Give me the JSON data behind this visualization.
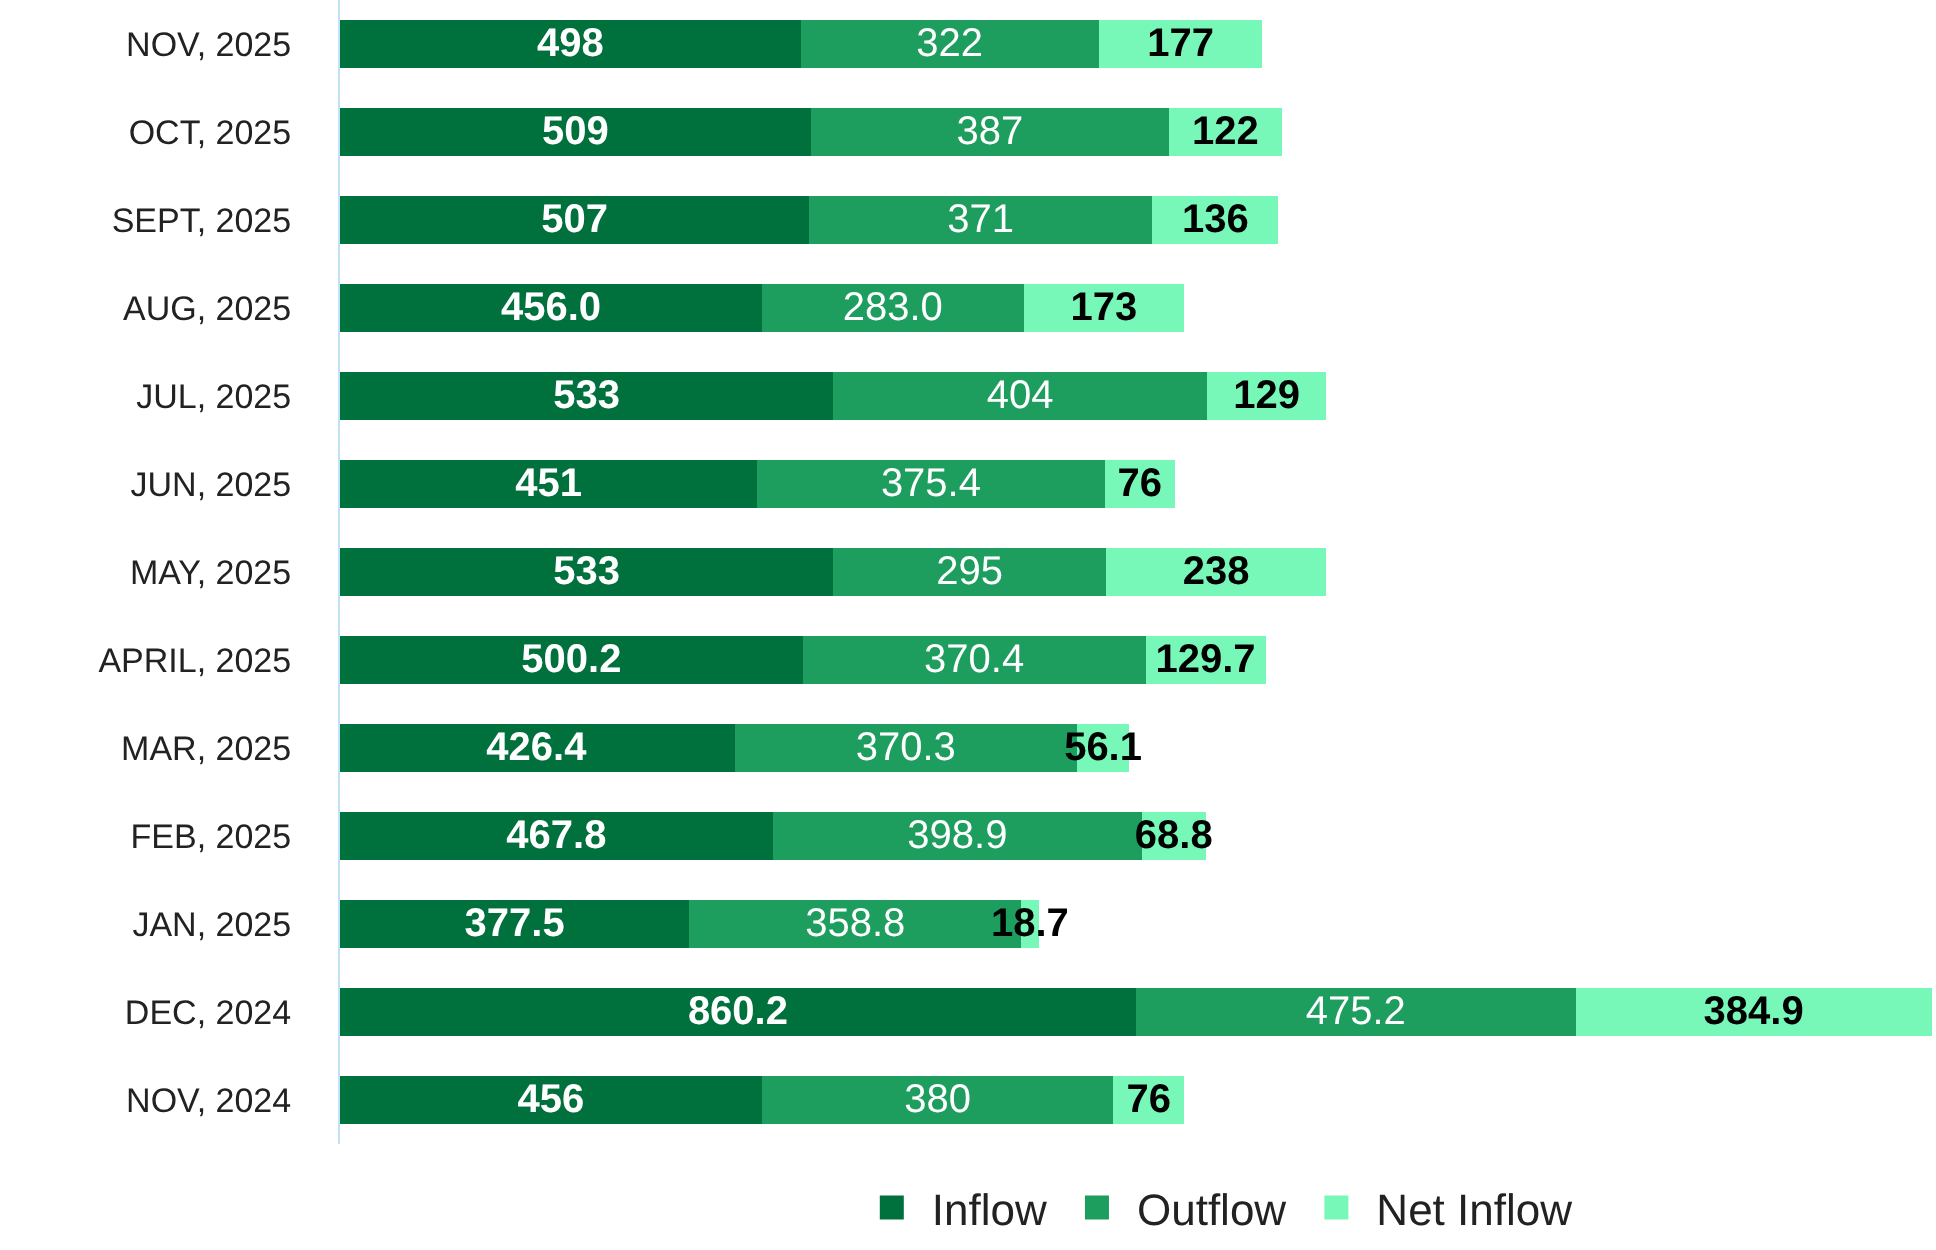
{
  "chart_data": {
    "type": "bar",
    "orientation": "horizontal",
    "stacked": true,
    "legend": "bottom",
    "tick_labels": "y",
    "xlim": [
      0,
      1725
    ],
    "categories": [
      "NOV, 2025",
      "OCT, 2025",
      "SEPT, 2025",
      "AUG, 2025",
      "JUL, 2025",
      "JUN, 2025",
      "MAY, 2025",
      "APRIL, 2025",
      "MAR, 2025",
      "FEB, 2025",
      "JAN, 2025",
      "DEC, 2024",
      "NOV, 2024"
    ],
    "series": [
      {
        "name": "Inflow",
        "color": "#00703c",
        "values": [
          498,
          509,
          507,
          456.0,
          533,
          451,
          533,
          500.2,
          426.4,
          467.8,
          377.5,
          860.2,
          456
        ],
        "value_labels": [
          "498",
          "509",
          "507",
          "456.0",
          "533",
          "451",
          "533",
          "500.2",
          "426.4",
          "467.8",
          "377.5",
          "860.2",
          "456"
        ]
      },
      {
        "name": "Outflow",
        "color": "#1e9e5e",
        "values": [
          322,
          387,
          371,
          283.0,
          404,
          375.4,
          295,
          370.4,
          370.3,
          398.9,
          358.8,
          475.2,
          380
        ],
        "value_labels": [
          "322",
          "387",
          "371",
          "283.0",
          "404",
          "375.4",
          "295",
          "370.4",
          "370.3",
          "398.9",
          "358.8",
          "475.2",
          "380"
        ]
      },
      {
        "name": "Net Inflow",
        "color": "#78f8b8",
        "values": [
          177,
          122,
          136,
          173,
          129,
          76,
          238,
          129.7,
          56.1,
          68.8,
          18.7,
          384.9,
          76
        ],
        "value_labels": [
          "177",
          "122",
          "136",
          "173",
          "129",
          "76",
          "238",
          "129.7",
          "56.1",
          "68.8",
          "18.7",
          "384.9",
          "76"
        ]
      }
    ]
  }
}
